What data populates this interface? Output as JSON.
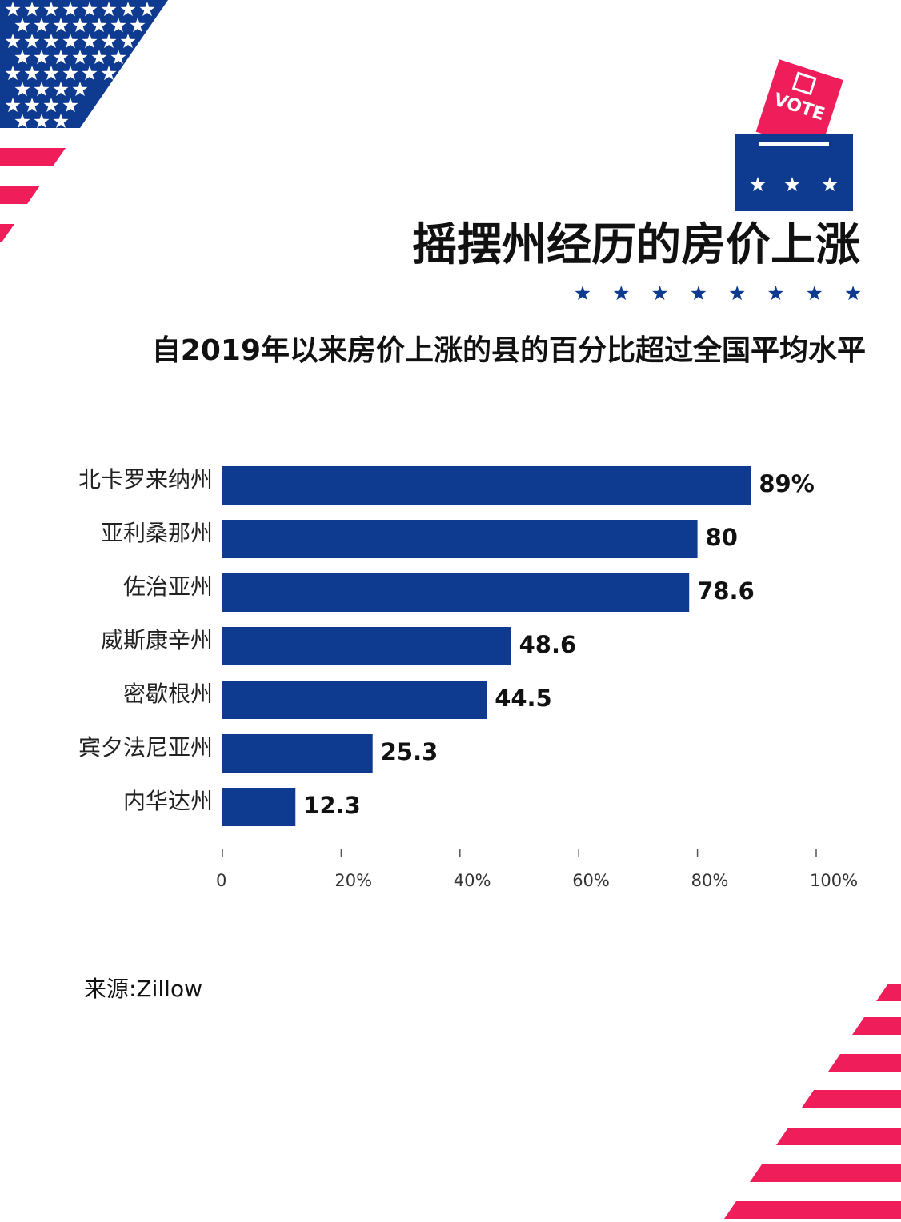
{
  "chart_data": {
    "type": "bar",
    "orientation": "horizontal",
    "title": "摇摆州经历的房价上涨",
    "subtitle": "自2019年以来房价上涨的县的百分比超过全国平均水平",
    "source": "来源:Zillow",
    "categories": [
      "北卡罗来纳州",
      "亚利桑那州",
      "佐治亚州",
      "威斯康辛州",
      "密歇根州",
      "宾夕法尼亚州",
      "内华达州"
    ],
    "values": [
      89,
      80,
      78.6,
      48.6,
      44.5,
      25.3,
      12.3
    ],
    "value_labels": [
      "89%",
      "80",
      "78.6",
      "48.6",
      "44.5",
      "25.3",
      "12.3"
    ],
    "color": "#0e3a8f",
    "xlim": [
      0,
      100
    ],
    "xticks": [
      0,
      {
        "value": 20,
        "label": "20%"
      },
      {
        "value": 40,
        "label": "40%"
      },
      {
        "value": 60,
        "label": "60%"
      },
      {
        "value": 80,
        "label": "80%"
      },
      {
        "value": 100,
        "label": "100%"
      }
    ],
    "grid": false
  }
}
